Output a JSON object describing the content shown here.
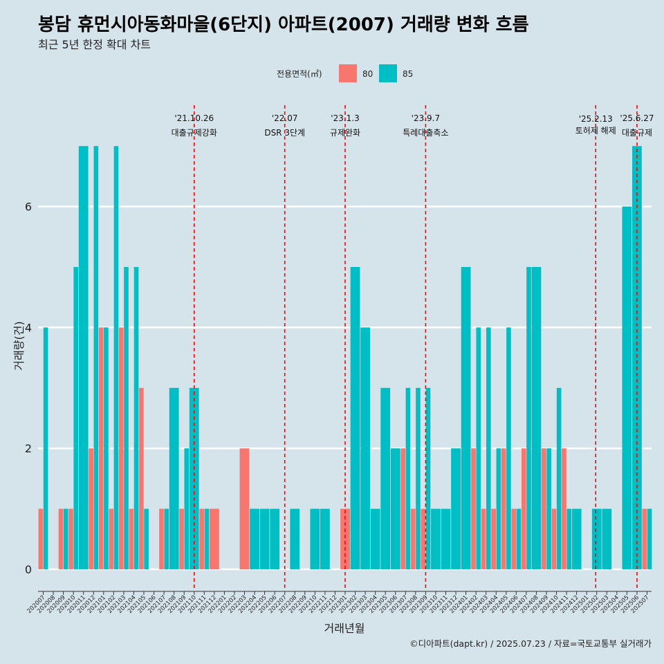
{
  "chart_data": {
    "type": "bar",
    "title": "봉담 휴먼시아동화마을(6단지) 아파트(2007) 거래량 변화 흐름",
    "subtitle": "최근 5년 한정 확대 차트",
    "xlabel": "거래년월",
    "ylabel": "거래량(건)",
    "caption": "©디아파트(dapt.kr) / 2025.07.23 / 자료=국토교통부 실거래가",
    "legend": {
      "title": "전용면적(㎡)",
      "position": "top"
    },
    "ylim": [
      0,
      7
    ],
    "yticks": [
      0,
      2,
      4,
      6
    ],
    "colors": {
      "80": "#f8766d",
      "85": "#00bfc4",
      "event_line": "#ff0000",
      "grid": "#ffffff",
      "background": "#d5e3ea"
    },
    "months": [
      "202007",
      "202008",
      "202009",
      "202010",
      "202011",
      "202012",
      "202101",
      "202102",
      "202103",
      "202104",
      "202105",
      "202106",
      "202107",
      "202108",
      "202109",
      "202110",
      "202111",
      "202112",
      "202201",
      "202202",
      "202203",
      "202204",
      "202205",
      "202206",
      "202207",
      "202208",
      "202209",
      "202210",
      "202211",
      "202212",
      "202301",
      "202302",
      "202303",
      "202304",
      "202305",
      "202306",
      "202307",
      "202308",
      "202309",
      "202310",
      "202311",
      "202312",
      "202401",
      "202402",
      "202403",
      "202404",
      "202405",
      "202406",
      "202407",
      "202408",
      "202409",
      "202410",
      "202411",
      "202412",
      "202501",
      "202502",
      "202503",
      "202504",
      "202505",
      "202506",
      "202507"
    ],
    "series": [
      {
        "name": "80",
        "values": [
          1,
          0,
          1,
          1,
          0,
          2,
          4,
          1,
          4,
          1,
          3,
          0,
          1,
          0,
          1,
          0,
          1,
          1,
          0,
          0,
          2,
          0,
          0,
          0,
          0,
          0,
          0,
          0,
          0,
          0,
          1,
          0,
          0,
          0,
          0,
          0,
          2,
          1,
          1,
          0,
          0,
          0,
          0,
          2,
          1,
          1,
          2,
          1,
          2,
          0,
          2,
          1,
          2,
          0,
          0,
          0,
          0,
          0,
          0,
          0,
          1
        ]
      },
      {
        "name": "85",
        "values": [
          4,
          0,
          1,
          5,
          7,
          7,
          4,
          7,
          5,
          5,
          1,
          0,
          1,
          3,
          2,
          3,
          1,
          0,
          0,
          0,
          0,
          1,
          1,
          1,
          0,
          1,
          0,
          1,
          1,
          0,
          0,
          5,
          4,
          1,
          3,
          2,
          3,
          3,
          3,
          1,
          1,
          2,
          5,
          4,
          4,
          2,
          4,
          1,
          5,
          5,
          2,
          3,
          1,
          1,
          0,
          1,
          1,
          0,
          6,
          7,
          1
        ]
      }
    ],
    "events": [
      {
        "month": "202110",
        "date": "'21.10.26",
        "label": "대출규제강화"
      },
      {
        "month": "202207",
        "date": "'22.07",
        "label": "DSR 3단계"
      },
      {
        "month": "202301",
        "date": "'23.1.3",
        "label": "규제완화"
      },
      {
        "month": "202309",
        "date": "'23.9.7",
        "label": "특례대출축소"
      },
      {
        "month": "202502",
        "date": "'25.2.13",
        "label": "토허제 해제"
      },
      {
        "month": "202506",
        "date": "'25.6.27",
        "label": "대출규제"
      }
    ]
  }
}
